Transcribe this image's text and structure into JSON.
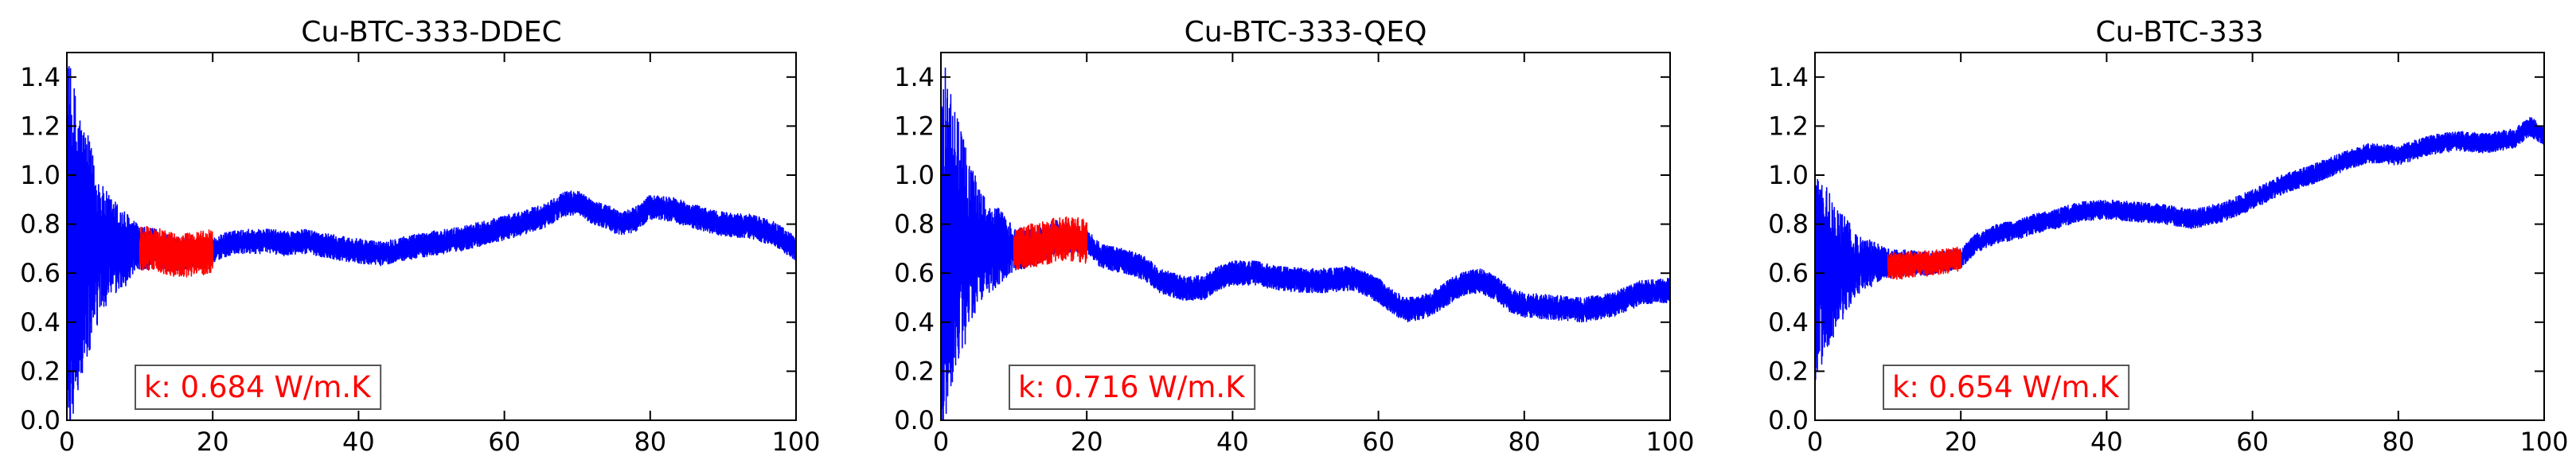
{
  "chart_data": [
    {
      "type": "line",
      "title": "Cu-BTC-333-DDEC",
      "xlabel": "",
      "ylabel": "",
      "xlim": [
        0,
        100
      ],
      "ylim": [
        0,
        1.5
      ],
      "xticks": [
        "0",
        "20",
        "40",
        "60",
        "80",
        "100"
      ],
      "yticks": [
        "0.0",
        "0.2",
        "0.4",
        "0.6",
        "0.8",
        "1.0",
        "1.2",
        "1.4"
      ],
      "grid": false,
      "annotation": "k: 0.684 W/m.K",
      "series": [
        {
          "color": "#0000ff",
          "noise_envelope": [
            [
              0,
              0.8
            ],
            [
              2,
              0.55
            ],
            [
              5,
              0.25
            ],
            [
              10,
              0.09
            ],
            [
              20,
              0.05
            ],
            [
              100,
              0.05
            ]
          ],
          "x": [
            0,
            1,
            2,
            3,
            5,
            7,
            9,
            10,
            12,
            14,
            16,
            18,
            20,
            22,
            25,
            28,
            30,
            33,
            36,
            40,
            43,
            46,
            50,
            54,
            58,
            62,
            66,
            68,
            70,
            72,
            74,
            76,
            78,
            80,
            83,
            86,
            90,
            94,
            97,
            100
          ],
          "y": [
            0.7,
            0.7,
            0.7,
            0.7,
            0.7,
            0.7,
            0.7,
            0.7,
            0.7,
            0.68,
            0.68,
            0.68,
            0.69,
            0.72,
            0.73,
            0.73,
            0.72,
            0.73,
            0.71,
            0.69,
            0.68,
            0.7,
            0.72,
            0.74,
            0.77,
            0.8,
            0.84,
            0.88,
            0.89,
            0.85,
            0.83,
            0.8,
            0.82,
            0.87,
            0.86,
            0.83,
            0.8,
            0.79,
            0.76,
            0.7
          ]
        },
        {
          "color": "#ff0000",
          "noise_envelope": [
            [
              10,
              0.09
            ],
            [
              20,
              0.09
            ]
          ],
          "x": [
            10,
            12,
            14,
            16,
            18,
            20
          ],
          "y": [
            0.7,
            0.7,
            0.68,
            0.67,
            0.68,
            0.69
          ]
        }
      ]
    },
    {
      "type": "line",
      "title": "Cu-BTC-333-QEQ",
      "xlabel": "",
      "ylabel": "",
      "xlim": [
        0,
        100
      ],
      "ylim": [
        0,
        1.5
      ],
      "xticks": [
        "0",
        "20",
        "40",
        "60",
        "80",
        "100"
      ],
      "yticks": [
        "0.0",
        "0.2",
        "0.4",
        "0.6",
        "0.8",
        "1.0",
        "1.2",
        "1.4"
      ],
      "grid": false,
      "annotation": "k: 0.716 W/m.K",
      "series": [
        {
          "color": "#0000ff",
          "noise_envelope": [
            [
              0,
              0.8
            ],
            [
              2,
              0.55
            ],
            [
              5,
              0.25
            ],
            [
              10,
              0.09
            ],
            [
              20,
              0.05
            ],
            [
              100,
              0.05
            ]
          ],
          "x": [
            0,
            2,
            5,
            8,
            10,
            12,
            14,
            16,
            18,
            20,
            22,
            25,
            28,
            30,
            33,
            36,
            38,
            40,
            43,
            46,
            50,
            53,
            56,
            58,
            60,
            62,
            64,
            66,
            68,
            70,
            72,
            74,
            76,
            78,
            80,
            84,
            88,
            92,
            96,
            100
          ],
          "y": [
            0.72,
            0.72,
            0.72,
            0.71,
            0.7,
            0.7,
            0.72,
            0.75,
            0.74,
            0.73,
            0.67,
            0.65,
            0.62,
            0.57,
            0.54,
            0.54,
            0.58,
            0.6,
            0.6,
            0.58,
            0.57,
            0.57,
            0.58,
            0.56,
            0.53,
            0.48,
            0.45,
            0.46,
            0.49,
            0.53,
            0.56,
            0.57,
            0.54,
            0.49,
            0.47,
            0.46,
            0.45,
            0.47,
            0.52,
            0.53
          ]
        },
        {
          "color": "#ff0000",
          "noise_envelope": [
            [
              10,
              0.09
            ],
            [
              20,
              0.09
            ]
          ],
          "x": [
            10,
            12,
            14,
            16,
            18,
            20
          ],
          "y": [
            0.7,
            0.71,
            0.72,
            0.74,
            0.74,
            0.73
          ]
        }
      ]
    },
    {
      "type": "line",
      "title": "Cu-BTC-333",
      "xlabel": "",
      "ylabel": "",
      "xlim": [
        0,
        100
      ],
      "ylim": [
        0,
        1.5
      ],
      "xticks": [
        "0",
        "20",
        "40",
        "60",
        "80",
        "100"
      ],
      "yticks": [
        "0.0",
        "0.2",
        "0.4",
        "0.6",
        "0.8",
        "1.0",
        "1.2",
        "1.4"
      ],
      "grid": false,
      "annotation": "k: 0.654 W/m.K",
      "series": [
        {
          "color": "#0000ff",
          "noise_envelope": [
            [
              0,
              0.45
            ],
            [
              3,
              0.25
            ],
            [
              6,
              0.12
            ],
            [
              10,
              0.06
            ],
            [
              20,
              0.04
            ],
            [
              100,
              0.04
            ]
          ],
          "x": [
            0,
            2,
            5,
            8,
            10,
            12,
            15,
            18,
            20,
            22,
            25,
            28,
            30,
            33,
            36,
            40,
            44,
            48,
            52,
            56,
            60,
            64,
            68,
            72,
            76,
            80,
            84,
            88,
            92,
            96,
            98,
            100
          ],
          "y": [
            0.6,
            0.62,
            0.63,
            0.64,
            0.64,
            0.64,
            0.64,
            0.65,
            0.66,
            0.72,
            0.76,
            0.78,
            0.8,
            0.82,
            0.85,
            0.86,
            0.85,
            0.84,
            0.82,
            0.85,
            0.9,
            0.96,
            1.0,
            1.05,
            1.09,
            1.08,
            1.12,
            1.14,
            1.13,
            1.15,
            1.2,
            1.16
          ]
        },
        {
          "color": "#ff0000",
          "noise_envelope": [
            [
              10,
              0.055
            ],
            [
              20,
              0.05
            ]
          ],
          "x": [
            10,
            12,
            14,
            16,
            18,
            20
          ],
          "y": [
            0.63,
            0.63,
            0.64,
            0.64,
            0.65,
            0.66
          ]
        }
      ]
    }
  ]
}
